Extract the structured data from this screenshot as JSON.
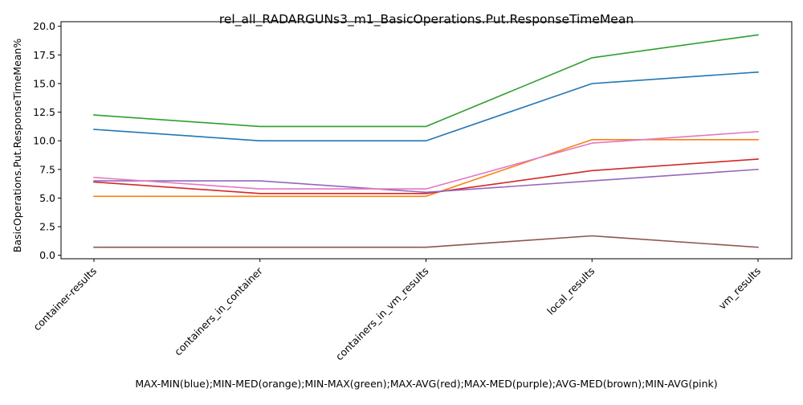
{
  "chart_data": {
    "type": "line",
    "title": "rel_all_RADARGUNs3_m1_BasicOperations.Put.ResponseTimeMean",
    "xlabel": "MAX-MIN(blue);MIN-MED(orange);MIN-MAX(green);MAX-AVG(red);MAX-MED(purple);AVG-MED(brown);MIN-AVG(pink)",
    "ylabel": "BasicOperations.Put.ResponseTimeMean%",
    "categories": [
      "container-results",
      "containers_in_container",
      "containers_in_vm_results",
      "local_results",
      "vm_results"
    ],
    "ylim": [
      -0.3,
      20.4
    ],
    "yticks": [
      0.0,
      2.5,
      5.0,
      7.5,
      10.0,
      12.5,
      15.0,
      17.5,
      20.0
    ],
    "ytick_labels": [
      "0.0",
      "2.5",
      "5.0",
      "7.5",
      "10.0",
      "12.5",
      "15.0",
      "17.5",
      "20.0"
    ],
    "grid": false,
    "series": [
      {
        "name": "MAX-MIN",
        "color": "#1f77b4",
        "values": [
          11.0,
          10.0,
          10.0,
          15.0,
          16.0
        ]
      },
      {
        "name": "MIN-MED",
        "color": "#ff7f0e",
        "values": [
          5.15,
          5.15,
          5.15,
          10.1,
          10.1
        ]
      },
      {
        "name": "MIN-MAX",
        "color": "#2ca02c",
        "values": [
          12.25,
          11.25,
          11.25,
          17.25,
          19.25
        ]
      },
      {
        "name": "MAX-AVG",
        "color": "#d62728",
        "values": [
          6.4,
          5.4,
          5.4,
          7.4,
          8.4
        ]
      },
      {
        "name": "MAX-MED",
        "color": "#9467bd",
        "values": [
          6.5,
          6.5,
          5.5,
          6.5,
          7.5
        ]
      },
      {
        "name": "AVG-MED",
        "color": "#8c564b",
        "values": [
          0.7,
          0.7,
          0.7,
          1.7,
          0.7
        ]
      },
      {
        "name": "MIN-AVG",
        "color": "#e377c2",
        "values": [
          6.8,
          5.8,
          5.8,
          9.8,
          10.8
        ]
      }
    ]
  }
}
